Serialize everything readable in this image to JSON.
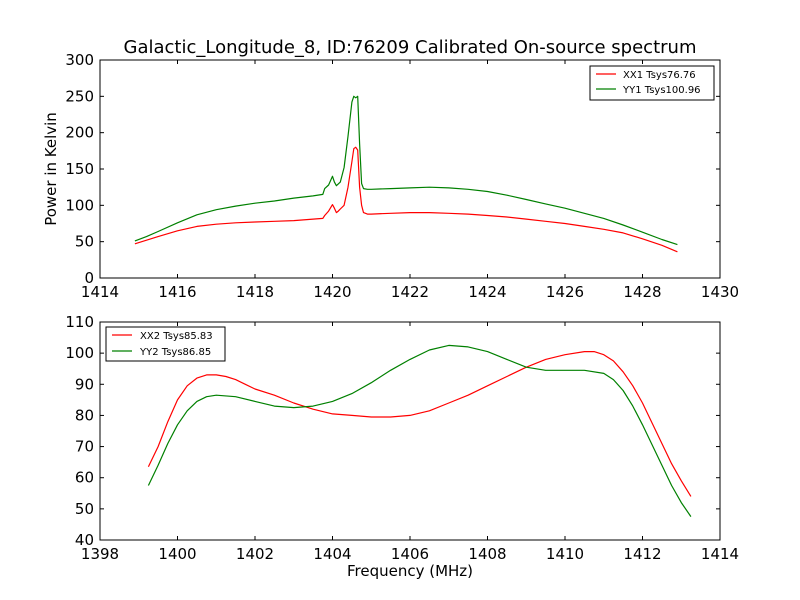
{
  "chart_data": [
    {
      "type": "line",
      "title": "Galactic_Longitude_8, ID:76209 Calibrated On-source spectrum",
      "xlabel": "",
      "ylabel": "Power in Kelvin",
      "xlim": [
        1414,
        1430
      ],
      "ylim": [
        0,
        300
      ],
      "xticks": [
        1414,
        1416,
        1418,
        1420,
        1422,
        1424,
        1426,
        1428,
        1430
      ],
      "yticks": [
        0,
        50,
        100,
        150,
        200,
        250,
        300
      ],
      "grid": false,
      "legend_position": "top-right",
      "series": [
        {
          "name": "XX1 Tsys76.76",
          "color": "#ff0000",
          "x": [
            1414.9,
            1415.2,
            1415.5,
            1416.0,
            1416.5,
            1417.0,
            1417.5,
            1418.0,
            1418.5,
            1419.0,
            1419.5,
            1419.75,
            1419.8,
            1419.9,
            1420.0,
            1420.05,
            1420.1,
            1420.15,
            1420.2,
            1420.3,
            1420.4,
            1420.5,
            1420.55,
            1420.6,
            1420.65,
            1420.7,
            1420.75,
            1420.8,
            1420.9,
            1421.0,
            1421.5,
            1422.0,
            1422.5,
            1423.0,
            1423.5,
            1424.0,
            1424.5,
            1425.0,
            1425.5,
            1426.0,
            1426.5,
            1427.0,
            1427.5,
            1428.0,
            1428.5,
            1428.9
          ],
          "values": [
            47,
            52,
            57,
            65,
            71,
            74,
            76,
            77,
            78,
            79,
            81,
            82,
            86,
            92,
            101,
            96,
            90,
            92,
            95,
            100,
            125,
            160,
            178,
            180,
            176,
            125,
            100,
            90,
            88,
            88,
            89,
            90,
            90,
            89,
            88,
            86,
            84,
            81,
            78,
            75,
            71,
            67,
            62,
            54,
            45,
            36
          ]
        },
        {
          "name": "YY1 Tsys100.96",
          "color": "#008000",
          "x": [
            1414.9,
            1415.2,
            1415.5,
            1416.0,
            1416.5,
            1417.0,
            1417.5,
            1418.0,
            1418.5,
            1419.0,
            1419.5,
            1419.75,
            1419.8,
            1419.9,
            1420.0,
            1420.05,
            1420.1,
            1420.2,
            1420.3,
            1420.4,
            1420.5,
            1420.55,
            1420.6,
            1420.65,
            1420.7,
            1420.75,
            1420.8,
            1420.9,
            1421.0,
            1421.5,
            1422.0,
            1422.5,
            1423.0,
            1423.5,
            1424.0,
            1424.5,
            1425.0,
            1425.5,
            1426.0,
            1426.5,
            1427.0,
            1427.5,
            1428.0,
            1428.5,
            1428.9
          ],
          "values": [
            51,
            57,
            64,
            76,
            87,
            94,
            99,
            103,
            106,
            110,
            113,
            115,
            123,
            128,
            140,
            132,
            127,
            132,
            152,
            195,
            242,
            250,
            248,
            250,
            185,
            130,
            123,
            122,
            122,
            123,
            124,
            125,
            124,
            122,
            119,
            114,
            108,
            102,
            96,
            89,
            82,
            73,
            63,
            53,
            46
          ]
        }
      ]
    },
    {
      "type": "line",
      "title": "",
      "xlabel": "Frequency (MHz)",
      "ylabel": "",
      "xlim": [
        1398,
        1414
      ],
      "ylim": [
        40,
        110
      ],
      "xticks": [
        1398,
        1400,
        1402,
        1404,
        1406,
        1408,
        1410,
        1412,
        1414
      ],
      "yticks": [
        40,
        50,
        60,
        70,
        80,
        90,
        100,
        110
      ],
      "grid": false,
      "legend_position": "top-left",
      "series": [
        {
          "name": "XX2 Tsys85.83",
          "color": "#ff0000",
          "x": [
            1399.25,
            1399.5,
            1399.75,
            1400.0,
            1400.25,
            1400.5,
            1400.75,
            1401.0,
            1401.25,
            1401.5,
            1401.75,
            1402.0,
            1402.5,
            1403.0,
            1403.5,
            1404.0,
            1404.5,
            1405.0,
            1405.5,
            1406.0,
            1406.5,
            1407.0,
            1407.5,
            1408.0,
            1408.5,
            1409.0,
            1409.5,
            1410.0,
            1410.5,
            1410.75,
            1411.0,
            1411.25,
            1411.5,
            1411.75,
            1412.0,
            1412.25,
            1412.5,
            1412.75,
            1413.0,
            1413.25
          ],
          "values": [
            63.5,
            70,
            78,
            85,
            89.5,
            92,
            93,
            93,
            92.5,
            91.5,
            90,
            88.5,
            86.5,
            84,
            82,
            80.5,
            80,
            79.5,
            79.5,
            80,
            81.5,
            84,
            86.5,
            89.5,
            92.5,
            95.5,
            98,
            99.5,
            100.5,
            100.5,
            99.5,
            97.5,
            94,
            89.5,
            84,
            77.5,
            71,
            64.5,
            59,
            54
          ]
        },
        {
          "name": "YY2 Tsys86.85",
          "color": "#008000",
          "x": [
            1399.25,
            1399.5,
            1399.75,
            1400.0,
            1400.25,
            1400.5,
            1400.75,
            1401.0,
            1401.5,
            1402.0,
            1402.5,
            1403.0,
            1403.5,
            1404.0,
            1404.5,
            1405.0,
            1405.5,
            1406.0,
            1406.5,
            1407.0,
            1407.5,
            1408.0,
            1408.5,
            1409.0,
            1409.5,
            1410.0,
            1410.5,
            1411.0,
            1411.25,
            1411.5,
            1411.75,
            1412.0,
            1412.25,
            1412.5,
            1412.75,
            1413.0,
            1413.25
          ],
          "values": [
            57.5,
            64,
            71,
            77,
            81.5,
            84.5,
            86,
            86.5,
            86,
            84.5,
            83,
            82.5,
            83,
            84.5,
            87,
            90.5,
            94.5,
            98,
            101,
            102.5,
            102,
            100.5,
            98,
            95.5,
            94.5,
            94.5,
            94.5,
            93.5,
            91.5,
            88,
            83,
            77,
            70.5,
            64,
            57.5,
            52,
            47.5
          ]
        }
      ]
    }
  ]
}
